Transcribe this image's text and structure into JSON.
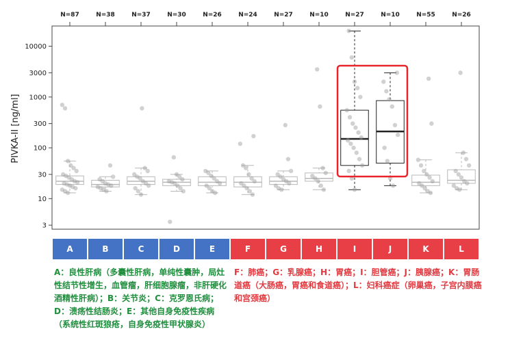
{
  "chart_data": {
    "type": "boxplot",
    "ylabel": "PIVKA-II [ng/ml]",
    "yscale": "log",
    "ylim": [
      2.5,
      25000
    ],
    "yticks": [
      3,
      10,
      30,
      100,
      300,
      1000,
      3000,
      10000
    ],
    "categories": [
      "A",
      "B",
      "C",
      "D",
      "E",
      "F",
      "G",
      "H",
      "I",
      "J",
      "K",
      "L"
    ],
    "n_labels": [
      "N=87",
      "N=38",
      "N=37",
      "N=30",
      "N=26",
      "N=24",
      "N=27",
      "N=10",
      "N=27",
      "N=10",
      "N=55",
      "N=26"
    ],
    "groups": [
      {
        "name": "A",
        "color": "#4472c4",
        "q1": 19,
        "median": 22,
        "q3": 28,
        "whisker_low": 13,
        "whisker_high": 55,
        "points": [
          700,
          600,
          55,
          45,
          40,
          35,
          30,
          28,
          26,
          24,
          22,
          21,
          20,
          19,
          18,
          17,
          16,
          15,
          14,
          13
        ]
      },
      {
        "name": "B",
        "color": "#4472c4",
        "q1": 17,
        "median": 19,
        "q3": 23,
        "whisker_low": 14,
        "whisker_high": 27,
        "points": [
          45,
          27,
          24,
          22,
          20,
          19,
          18,
          17,
          16,
          15,
          14
        ]
      },
      {
        "name": "C",
        "color": "#4472c4",
        "q1": 19,
        "median": 22,
        "q3": 27,
        "whisker_low": 12,
        "whisker_high": 40,
        "points": [
          600,
          40,
          35,
          30,
          27,
          25,
          22,
          20,
          18,
          16,
          14,
          12
        ]
      },
      {
        "name": "D",
        "color": "#4472c4",
        "q1": 18,
        "median": 21,
        "q3": 24,
        "whisker_low": 14,
        "whisker_high": 30,
        "points": [
          65,
          30,
          27,
          24,
          22,
          21,
          20,
          18,
          16,
          14,
          3.5
        ]
      },
      {
        "name": "E",
        "color": "#4472c4",
        "q1": 18,
        "median": 21,
        "q3": 27,
        "whisker_low": 13,
        "whisker_high": 35,
        "points": [
          35,
          32,
          28,
          25,
          22,
          20,
          18,
          16,
          14,
          13
        ]
      },
      {
        "name": "F",
        "color": "#e83e46",
        "q1": 17,
        "median": 21,
        "q3": 27,
        "whisker_low": 12,
        "whisker_high": 45,
        "points": [
          170,
          120,
          45,
          40,
          30,
          25,
          22,
          20,
          18,
          16,
          14,
          12
        ]
      },
      {
        "name": "G",
        "color": "#e83e46",
        "q1": 19,
        "median": 22,
        "q3": 27,
        "whisker_low": 15,
        "whisker_high": 35,
        "points": [
          280,
          60,
          35,
          30,
          27,
          24,
          22,
          20,
          18,
          16,
          15
        ]
      },
      {
        "name": "H",
        "color": "#e83e46",
        "q1": 22,
        "median": 25,
        "q3": 32,
        "whisker_low": 15,
        "whisker_high": 40,
        "points": [
          3500,
          650,
          40,
          32,
          28,
          25,
          22,
          18,
          15
        ]
      },
      {
        "name": "I",
        "color": "#e83e46",
        "q1": 45,
        "median": 150,
        "q3": 550,
        "whisker_low": 15,
        "whisker_high": 20000,
        "points": [
          20000,
          6000,
          2000,
          1500,
          1000,
          550,
          400,
          300,
          250,
          200,
          160,
          140,
          120,
          100,
          80,
          60,
          45,
          35,
          25,
          15
        ]
      },
      {
        "name": "J",
        "color": "#e83e46",
        "q1": 50,
        "median": 210,
        "q3": 850,
        "whisker_low": 18,
        "whisker_high": 3000,
        "points": [
          3000,
          2000,
          1300,
          900,
          650,
          280,
          180,
          100,
          55,
          25,
          18
        ]
      },
      {
        "name": "K",
        "color": "#e83e46",
        "q1": 18,
        "median": 21,
        "q3": 29,
        "whisker_low": 13,
        "whisker_high": 58,
        "points": [
          2300,
          300,
          58,
          45,
          35,
          30,
          26,
          22,
          20,
          18,
          16,
          14,
          13
        ]
      },
      {
        "name": "L",
        "color": "#e83e46",
        "q1": 20,
        "median": 23,
        "q3": 37,
        "whisker_low": 15,
        "whisker_high": 80,
        "points": [
          3000,
          80,
          60,
          45,
          35,
          30,
          26,
          22,
          20,
          18,
          16,
          15
        ]
      }
    ],
    "highlight": {
      "categories": [
        "I",
        "J"
      ],
      "color": "#e8242a"
    },
    "axis_color": "#444444",
    "box_color": "#222222",
    "faded_box_color": "#b8b8b8",
    "point_color": "#999999"
  },
  "legend": {
    "green_color": "#1f8f3e",
    "red_color": "#e03a40",
    "green_text": "A：良性肝病（多囊性肝病，单纯性囊肿，局灶性结节性增生，血管瘤，肝细胞腺瘤，非肝硬化酒精性肝病）；B：关节炎；C：克罗恩氏病；D：溃疡性结肠炎；E：其他自身免疫性疾病（系统性红斑狼疮，自身免疫性甲状腺炎）",
    "red_text": "F：肺癌；G：乳腺癌；H：胃癌；I：胆管癌；J：胰腺癌；K：胃肠道癌（大肠癌，胃癌和食道癌）；L：妇科癌症（卵巢癌，子宫内膜癌和宫颈癌）"
  }
}
